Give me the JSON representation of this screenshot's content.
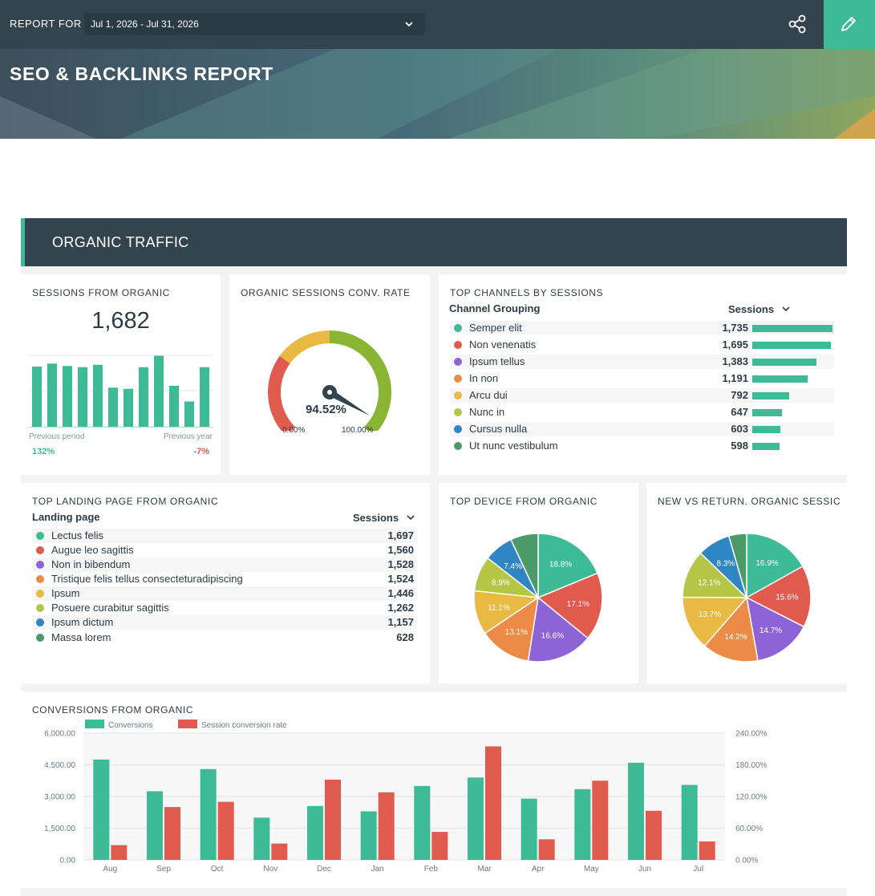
{
  "header": {
    "report_for_label": "REPORT FOR",
    "date_range": "Jul 1, 2026 - Jul 31, 2026",
    "title": "SEO & BACKLINKS REPORT"
  },
  "section": {
    "title": "ORGANIC TRAFFIC"
  },
  "colors": {
    "accent": "#3dbb96",
    "dark": "#33444f",
    "red": "#e05a4e",
    "purple": "#8e63d8",
    "orange": "#ec8b48",
    "yellow": "#e8b943",
    "lime": "#b4c646",
    "blue": "#2f86c2",
    "green": "#4a9a6a"
  },
  "sessions_card": {
    "title": "SESSIONS FROM ORGANIC",
    "value": "1,682",
    "prev_period_label": "Previous period",
    "prev_period_value": "132%",
    "prev_year_label": "Previous year",
    "prev_year_value": "-7%"
  },
  "conv_rate_card": {
    "title": "ORGANIC SESSIONS CONV. RATE",
    "value": "94.52%",
    "min_label": "0.00%",
    "max_label": "100.00%"
  },
  "channels_card": {
    "title": "TOP CHANNELS BY SESSIONS",
    "col1": "Channel Grouping",
    "col2": "Sessions",
    "rows": [
      {
        "name": "Semper elit",
        "value": "1,735"
      },
      {
        "name": "Non venenatis",
        "value": "1,695"
      },
      {
        "name": "Ipsum tellus",
        "value": "1,383"
      },
      {
        "name": "In non",
        "value": "1,191"
      },
      {
        "name": "Arcu dui",
        "value": "792"
      },
      {
        "name": "Nunc in",
        "value": "647"
      },
      {
        "name": "Cursus nulla",
        "value": "603"
      },
      {
        "name": "Ut nunc vestibulum",
        "value": "598"
      }
    ]
  },
  "landing_card": {
    "title": "TOP LANDING PAGE FROM ORGANIC",
    "col1": "Landing page",
    "col2": "Sessions",
    "rows": [
      {
        "name": "Lectus felis",
        "value": "1,697"
      },
      {
        "name": "Augue leo sagittis",
        "value": "1,560"
      },
      {
        "name": "Non in bibendum",
        "value": "1,528"
      },
      {
        "name": "Tristique felis tellus consecteturadipiscing",
        "value": "1,524"
      },
      {
        "name": "Ipsum",
        "value": "1,446"
      },
      {
        "name": "Posuere curabitur sagittis",
        "value": "1,262"
      },
      {
        "name": "Ipsum dictum",
        "value": "1,157"
      },
      {
        "name": "Massa lorem",
        "value": "628"
      }
    ]
  },
  "device_card": {
    "title": "TOP DEVICE FROM ORGANIC"
  },
  "newret_card": {
    "title": "NEW VS RETURN. ORGANIC SESSIC"
  },
  "chart_data": [
    {
      "type": "bar",
      "name": "sessions-mini-bars",
      "values": [
        1000,
        1050,
        1010,
        990,
        1030,
        650,
        630,
        990,
        1180,
        680,
        420,
        990
      ]
    },
    {
      "type": "gauge",
      "name": "conv-rate-gauge",
      "value": 94.52,
      "min": 0,
      "max": 100
    },
    {
      "type": "pie",
      "name": "device-pie",
      "slices": [
        {
          "label": "18.8%",
          "value": 18.8,
          "color": "#3dbb96"
        },
        {
          "label": "17.1%",
          "value": 17.1,
          "color": "#e05a4e"
        },
        {
          "label": "16.6%",
          "value": 16.6,
          "color": "#8e63d8"
        },
        {
          "label": "13.1%",
          "value": 13.1,
          "color": "#ec8b48"
        },
        {
          "label": "11.1%",
          "value": 11.1,
          "color": "#e8b943"
        },
        {
          "label": "8.9%",
          "value": 8.9,
          "color": "#b4c646"
        },
        {
          "label": "7.4%",
          "value": 7.4,
          "color": "#2f86c2"
        },
        {
          "label": "",
          "value": 7.0,
          "color": "#4a9a6a"
        }
      ]
    },
    {
      "type": "pie",
      "name": "new-vs-return-pie",
      "slices": [
        {
          "label": "16.9%",
          "value": 16.9,
          "color": "#3dbb96"
        },
        {
          "label": "15.6%",
          "value": 15.6,
          "color": "#e05a4e"
        },
        {
          "label": "14.7%",
          "value": 14.7,
          "color": "#8e63d8"
        },
        {
          "label": "14.2%",
          "value": 14.2,
          "color": "#ec8b48"
        },
        {
          "label": "13.7%",
          "value": 13.7,
          "color": "#e8b943"
        },
        {
          "label": "12.1%",
          "value": 12.1,
          "color": "#b4c646"
        },
        {
          "label": "8.3%",
          "value": 8.3,
          "color": "#2f86c2"
        },
        {
          "label": "",
          "value": 4.5,
          "color": "#4a9a6a"
        }
      ]
    },
    {
      "type": "bar",
      "name": "conversions-from-organic",
      "title": "CONVERSIONS FROM ORGANIC",
      "categories": [
        "Aug",
        "Sep",
        "Oct",
        "Nov",
        "Dec",
        "Jan",
        "Feb",
        "Mar",
        "Apr",
        "May",
        "Jun",
        "Jul"
      ],
      "series": [
        {
          "name": "Conversions",
          "axis": "left",
          "color": "#3dbb96",
          "values": [
            4750,
            3250,
            4300,
            2000,
            2550,
            2300,
            3500,
            3900,
            2900,
            3350,
            4600,
            3550
          ]
        },
        {
          "name": "Session conversion rate",
          "axis": "right",
          "color": "#e05a4e",
          "values": [
            28,
            100,
            110,
            31,
            152,
            128,
            53,
            215,
            39,
            150,
            93,
            35
          ]
        }
      ],
      "y_left": {
        "min": 0,
        "max": 6000,
        "ticks": [
          "0.00",
          "1,500.00",
          "3,000.00",
          "4,500.00",
          "6,000.00"
        ]
      },
      "y_right": {
        "min": 0,
        "max": 240,
        "ticks": [
          "0.00%",
          "60.00%",
          "120.00%",
          "180.00%",
          "240.00%"
        ]
      },
      "grid": true,
      "legend": "top-left"
    }
  ]
}
